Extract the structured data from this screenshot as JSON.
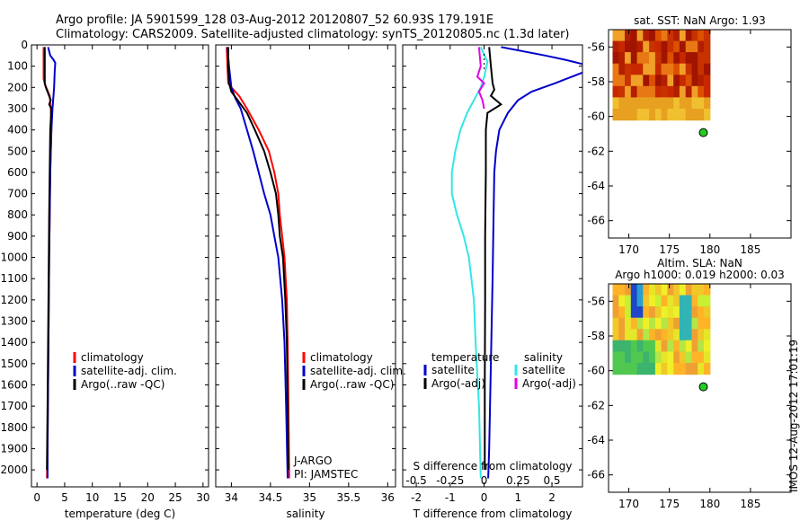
{
  "title_line1": "Argo profile: JA 5901599_128 03-Aug-2012 20120807_52 60.93S 179.191E",
  "title_line2": "Climatology: CARS2009. Satellite-adjusted climatology: synTS_20120805.nc (1.3d later)",
  "stamp": "IMOS 12-Aug-2012 17:01:19",
  "colors": {
    "climatology": "#ff0000",
    "satellite": "#0000cc",
    "argo": "#000000",
    "cyan": "#33e6e6",
    "magenta": "#e600e6"
  },
  "chart_data": [
    {
      "type": "line",
      "id": "temperature",
      "xlabel": "temperature (deg C)",
      "ylabel": "",
      "xlim": [
        -1,
        31
      ],
      "ylim": [
        2080,
        0
      ],
      "xticks": [
        "0",
        "5",
        "10",
        "15",
        "20",
        "25",
        "30"
      ],
      "yticks": [
        "0",
        "100",
        "200",
        "300",
        "400",
        "500",
        "600",
        "700",
        "800",
        "900",
        "1000",
        "1100",
        "1200",
        "1300",
        "1400",
        "1500",
        "1600",
        "1700",
        "1800",
        "1900",
        "2000"
      ],
      "legend": [
        "climatology",
        "satellite-adj. clim.",
        "Argo(..raw -QC)"
      ],
      "series": [
        {
          "name": "climatology",
          "color": "climatology",
          "points": [
            [
              1.2,
              10
            ],
            [
              1.2,
              100
            ],
            [
              1.2,
              160
            ],
            [
              1.5,
              190
            ],
            [
              2.3,
              240
            ],
            [
              2.5,
              300
            ],
            [
              2.6,
              400
            ],
            [
              2.5,
              500
            ],
            [
              2.4,
              600
            ],
            [
              2.3,
              800
            ],
            [
              2.2,
              1000
            ],
            [
              2.1,
              1300
            ],
            [
              2.0,
              1600
            ],
            [
              1.9,
              1900
            ],
            [
              1.8,
              2040
            ]
          ]
        },
        {
          "name": "satellite-adj. clim.",
          "color": "satellite",
          "points": [
            [
              2.0,
              10
            ],
            [
              2.4,
              50
            ],
            [
              3.0,
              70
            ],
            [
              3.3,
              85
            ],
            [
              3.2,
              120
            ],
            [
              3.1,
              200
            ],
            [
              2.8,
              300
            ],
            [
              2.6,
              400
            ],
            [
              2.5,
              500
            ],
            [
              2.4,
              600
            ],
            [
              2.3,
              800
            ],
            [
              2.2,
              1000
            ],
            [
              2.1,
              1300
            ],
            [
              2.0,
              1600
            ],
            [
              1.9,
              1900
            ],
            [
              1.9,
              2040
            ]
          ]
        },
        {
          "name": "Argo(..raw -QC)",
          "color": "argo",
          "points": [
            [
              1.4,
              10
            ],
            [
              1.4,
              100
            ],
            [
              1.4,
              180
            ],
            [
              1.6,
              200
            ],
            [
              2.2,
              240
            ],
            [
              2.5,
              260
            ],
            [
              2.2,
              280
            ],
            [
              2.6,
              300
            ],
            [
              2.4,
              400
            ],
            [
              2.3,
              600
            ],
            [
              2.2,
              800
            ],
            [
              2.1,
              1100
            ],
            [
              2.0,
              1400
            ],
            [
              1.9,
              1700
            ],
            [
              1.8,
              2000
            ]
          ]
        }
      ]
    },
    {
      "type": "line",
      "id": "salinity",
      "xlabel": "salinity",
      "ylabel": "",
      "xlim": [
        33.8,
        36.1
      ],
      "ylim": [
        2080,
        0
      ],
      "xticks": [
        "34",
        "34.5",
        "35",
        "35.5",
        "36"
      ],
      "legend": [
        "climatology",
        "satellite-adj. clim.",
        "Argo(..raw -QC)"
      ],
      "annotations": [
        "J-ARGO",
        "PI: JAMSTEC"
      ],
      "series": [
        {
          "name": "climatology",
          "color": "climatology",
          "points": [
            [
              33.94,
              10
            ],
            [
              33.95,
              100
            ],
            [
              33.96,
              180
            ],
            [
              34.0,
              200
            ],
            [
              34.1,
              240
            ],
            [
              34.2,
              300
            ],
            [
              34.35,
              400
            ],
            [
              34.48,
              500
            ],
            [
              34.55,
              600
            ],
            [
              34.6,
              700
            ],
            [
              34.62,
              800
            ],
            [
              34.65,
              900
            ],
            [
              34.68,
              1000
            ],
            [
              34.71,
              1200
            ],
            [
              34.72,
              1400
            ],
            [
              34.73,
              1700
            ],
            [
              34.74,
              2040
            ]
          ]
        },
        {
          "name": "satellite-adj. clim.",
          "color": "satellite",
          "points": [
            [
              33.95,
              10
            ],
            [
              33.97,
              100
            ],
            [
              34.0,
              200
            ],
            [
              34.05,
              250
            ],
            [
              34.12,
              300
            ],
            [
              34.2,
              400
            ],
            [
              34.28,
              500
            ],
            [
              34.35,
              600
            ],
            [
              34.42,
              700
            ],
            [
              34.5,
              800
            ],
            [
              34.55,
              900
            ],
            [
              34.6,
              1000
            ],
            [
              34.65,
              1200
            ],
            [
              34.68,
              1400
            ],
            [
              34.7,
              1700
            ],
            [
              34.72,
              2040
            ]
          ]
        },
        {
          "name": "Argo(..raw -QC)",
          "color": "argo",
          "points": [
            [
              33.96,
              10
            ],
            [
              33.96,
              100
            ],
            [
              33.97,
              180
            ],
            [
              34.0,
              220
            ],
            [
              34.1,
              270
            ],
            [
              34.2,
              320
            ],
            [
              34.3,
              400
            ],
            [
              34.42,
              500
            ],
            [
              34.5,
              600
            ],
            [
              34.57,
              700
            ],
            [
              34.6,
              800
            ],
            [
              34.62,
              900
            ],
            [
              34.66,
              1000
            ],
            [
              34.69,
              1200
            ],
            [
              34.71,
              1400
            ],
            [
              34.72,
              1700
            ],
            [
              34.73,
              2000
            ]
          ]
        }
      ]
    },
    {
      "type": "line",
      "id": "difference",
      "xlabel": "T difference from climatology",
      "xlabel_top": "S difference from climatology",
      "xlim": [
        -2.4,
        2.9
      ],
      "ylim": [
        2080,
        0
      ],
      "xticks": [
        "-2",
        "-1",
        "0",
        "1",
        "2"
      ],
      "top_ticks": [
        "-0.5",
        "-0.25",
        "0",
        "0.25",
        "0.5"
      ],
      "legend_headers": [
        "temperature",
        "salinity"
      ],
      "legend": [
        "satellite",
        "Argo(-adj)",
        "satellite",
        "Argo(-adj)"
      ],
      "series": [
        {
          "name": "T satellite",
          "color": "satellite",
          "points": [
            [
              0.5,
              10
            ],
            [
              1.8,
              50
            ],
            [
              2.4,
              70
            ],
            [
              2.9,
              90
            ]
          ]
        },
        {
          "name": "T satellite lower",
          "color": "satellite",
          "points": [
            [
              2.9,
              130
            ],
            [
              2.1,
              180
            ],
            [
              1.4,
              220
            ],
            [
              1.0,
              260
            ],
            [
              0.7,
              320
            ],
            [
              0.45,
              400
            ],
            [
              0.35,
              500
            ],
            [
              0.3,
              600
            ],
            [
              0.28,
              800
            ],
            [
              0.25,
              1100
            ],
            [
              0.2,
              1500
            ],
            [
              0.15,
              1900
            ],
            [
              0.12,
              2040
            ]
          ]
        },
        {
          "name": "T argo",
          "color": "argo",
          "points": [
            [
              0.15,
              10
            ],
            [
              0.2,
              100
            ],
            [
              0.25,
              180
            ],
            [
              0.3,
              210
            ],
            [
              0.2,
              240
            ],
            [
              0.5,
              280
            ],
            [
              0.1,
              320
            ],
            [
              0.05,
              400
            ],
            [
              0.05,
              600
            ],
            [
              0.03,
              900
            ],
            [
              0.03,
              1200
            ],
            [
              0.02,
              1600
            ],
            [
              0.02,
              2000
            ]
          ]
        },
        {
          "name": "S satellite",
          "color": "cyan",
          "points": [
            [
              -0.1,
              10
            ],
            [
              0.1,
              80
            ],
            [
              0.0,
              150
            ],
            [
              -0.1,
              200
            ],
            [
              -0.3,
              260
            ],
            [
              -0.5,
              320
            ],
            [
              -0.7,
              400
            ],
            [
              -0.85,
              500
            ],
            [
              -0.95,
              600
            ],
            [
              -0.95,
              700
            ],
            [
              -0.8,
              800
            ],
            [
              -0.6,
              900
            ],
            [
              -0.45,
              1000
            ],
            [
              -0.3,
              1200
            ],
            [
              -0.25,
              1400
            ],
            [
              -0.15,
              1700
            ],
            [
              -0.1,
              2040
            ]
          ]
        },
        {
          "name": "S argo",
          "color": "magenta",
          "points": [
            [
              -0.15,
              10
            ],
            [
              -0.1,
              100
            ],
            [
              -0.2,
              150
            ],
            [
              0.0,
              180
            ],
            [
              -0.15,
              220
            ],
            [
              -0.05,
              260
            ],
            [
              0.0,
              300
            ]
          ]
        }
      ]
    },
    {
      "type": "heatmap",
      "id": "sst",
      "title": "sat. SST: NaN Argo: 1.93",
      "xlim": [
        167.5,
        190
      ],
      "ylim": [
        -67,
        -55
      ],
      "xticks": [
        "170",
        "175",
        "180",
        "185"
      ],
      "yticks": [
        "-56",
        "-58",
        "-60",
        "-62",
        "-64",
        "-66"
      ],
      "marker": {
        "lon": 179.191,
        "lat": -60.93
      },
      "grid": {
        "lon0": 168,
        "lon1": 180,
        "lat0": -55,
        "lat1": -60.2
      }
    },
    {
      "type": "heatmap",
      "id": "sla",
      "title_line1": "Altim. SLA: NaN",
      "title_line2": "Argo h1000: 0.019 h2000: 0.03",
      "xlim": [
        167.5,
        190
      ],
      "ylim": [
        -67,
        -55
      ],
      "xticks": [
        "170",
        "175",
        "180",
        "185"
      ],
      "yticks": [
        "-56",
        "-58",
        "-60",
        "-62",
        "-64",
        "-66"
      ],
      "marker": {
        "lon": 179.191,
        "lat": -60.93
      },
      "grid": {
        "lon0": 168,
        "lon1": 180,
        "lat0": -55,
        "lat1": -60.2
      }
    }
  ]
}
